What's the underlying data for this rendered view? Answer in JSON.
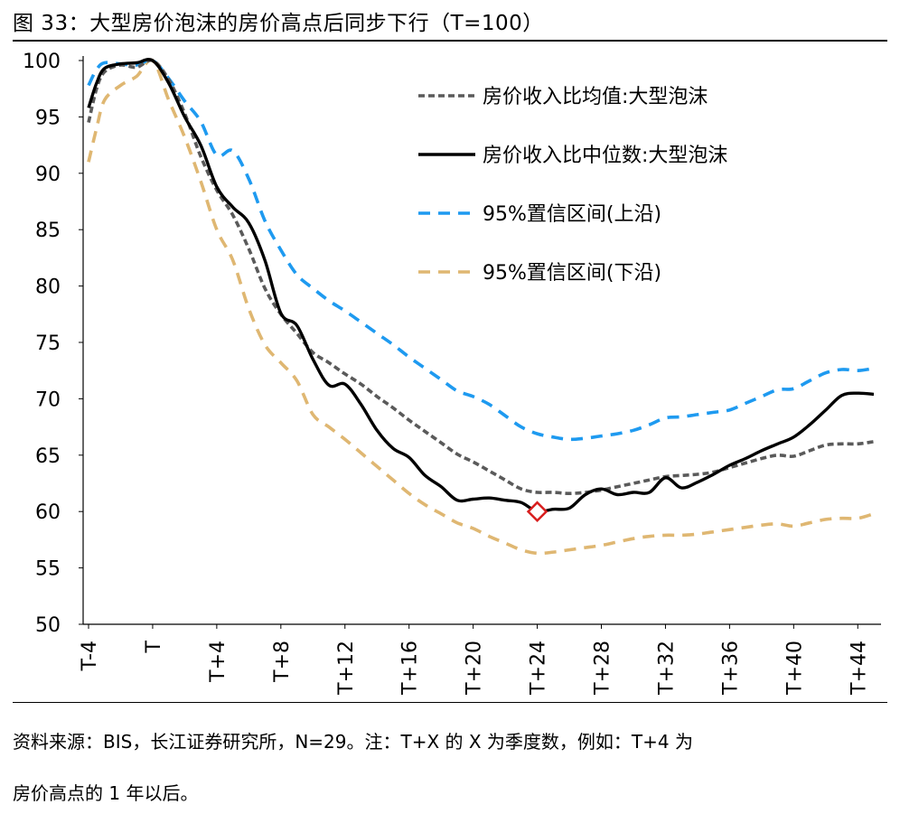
{
  "title": "图 33：大型房价泡沫的房价高点后同步下行（T=100）",
  "source_note": {
    "line1": "资料来源：BIS，长江证券研究所，N=29。注：T+X 的 X 为季度数，例如：T+4 为",
    "line2": "房价高点的 1 年以后。"
  },
  "colors": {
    "mean": "#5a5a5a",
    "median": "#000000",
    "upper": "#1e9af0",
    "lower": "#dfb772",
    "marker": "#d81e1e"
  },
  "chart_data": {
    "type": "line",
    "title": "大型房价泡沫的房价高点后同步下行（T=100）",
    "xlabel": "",
    "ylabel": "",
    "x_range": [
      -4,
      45
    ],
    "ylim": [
      50,
      100
    ],
    "y_ticks": [
      50,
      55,
      60,
      65,
      70,
      75,
      80,
      85,
      90,
      95,
      100
    ],
    "x_ticks": [
      {
        "x": -4,
        "label": "T-4"
      },
      {
        "x": 0,
        "label": "T"
      },
      {
        "x": 4,
        "label": "T+4"
      },
      {
        "x": 8,
        "label": "T+8"
      },
      {
        "x": 12,
        "label": "T+12"
      },
      {
        "x": 16,
        "label": "T+16"
      },
      {
        "x": 20,
        "label": "T+20"
      },
      {
        "x": 24,
        "label": "T+24"
      },
      {
        "x": 28,
        "label": "T+28"
      },
      {
        "x": 32,
        "label": "T+32"
      },
      {
        "x": 36,
        "label": "T+36"
      },
      {
        "x": 40,
        "label": "T+40"
      },
      {
        "x": 44,
        "label": "T+44"
      }
    ],
    "legend_position": "top-right",
    "series": [
      {
        "name": "房价收入比均值:大型泡沫",
        "style": "dotted",
        "color_key": "mean",
        "points": [
          [
            -4,
            94.5
          ],
          [
            -3.5,
            97.5
          ],
          [
            -3,
            99
          ],
          [
            -2,
            99.6
          ],
          [
            -1,
            99.4
          ],
          [
            0,
            100
          ],
          [
            1,
            98.3
          ],
          [
            2,
            95.3
          ],
          [
            3,
            91.5
          ],
          [
            4,
            88.5
          ],
          [
            5,
            86.3
          ],
          [
            6,
            83.3
          ],
          [
            7,
            79.8
          ],
          [
            8,
            77.5
          ],
          [
            9,
            75.8
          ],
          [
            10,
            74.1
          ],
          [
            11,
            73.2
          ],
          [
            12,
            72.2
          ],
          [
            13,
            71.3
          ],
          [
            14,
            70.2
          ],
          [
            15,
            69.2
          ],
          [
            16,
            68.1
          ],
          [
            17,
            67.1
          ],
          [
            18,
            66.1
          ],
          [
            19,
            65.1
          ],
          [
            20,
            64.4
          ],
          [
            21,
            63.6
          ],
          [
            22,
            62.8
          ],
          [
            23,
            62.0
          ],
          [
            24,
            61.7
          ],
          [
            25,
            61.7
          ],
          [
            26,
            61.6
          ],
          [
            27,
            61.7
          ],
          [
            28,
            61.9
          ],
          [
            29,
            62.2
          ],
          [
            30,
            62.5
          ],
          [
            31,
            62.8
          ],
          [
            32,
            63.1
          ],
          [
            33,
            63.2
          ],
          [
            34,
            63.3
          ],
          [
            35,
            63.5
          ],
          [
            36,
            63.9
          ],
          [
            37,
            64.3
          ],
          [
            38,
            64.7
          ],
          [
            39,
            65.0
          ],
          [
            40,
            64.9
          ],
          [
            41,
            65.4
          ],
          [
            42,
            65.9
          ],
          [
            43,
            66.0
          ],
          [
            44,
            66.0
          ],
          [
            45,
            66.2
          ]
        ]
      },
      {
        "name": "房价收入比中位数:大型泡沫",
        "style": "solid",
        "color_key": "median",
        "points": [
          [
            -4,
            95.8
          ],
          [
            -3.5,
            98.0
          ],
          [
            -3,
            99.3
          ],
          [
            -2,
            99.7
          ],
          [
            -1,
            99.8
          ],
          [
            0,
            100
          ],
          [
            1,
            98.0
          ],
          [
            2,
            95.0
          ],
          [
            3,
            92.5
          ],
          [
            4,
            88.8
          ],
          [
            5,
            87.0
          ],
          [
            6,
            85.6
          ],
          [
            7,
            82.3
          ],
          [
            8,
            77.6
          ],
          [
            9,
            76.5
          ],
          [
            10,
            73.5
          ],
          [
            11,
            71.2
          ],
          [
            12,
            71.3
          ],
          [
            13,
            69.5
          ],
          [
            14,
            67.2
          ],
          [
            15,
            65.6
          ],
          [
            16,
            64.8
          ],
          [
            17,
            63.2
          ],
          [
            18,
            62.2
          ],
          [
            19,
            61.0
          ],
          [
            20,
            61.1
          ],
          [
            21,
            61.2
          ],
          [
            22,
            61.0
          ],
          [
            23,
            60.8
          ],
          [
            24,
            60.0
          ],
          [
            25,
            60.2
          ],
          [
            26,
            60.3
          ],
          [
            27,
            61.5
          ],
          [
            28,
            62.0
          ],
          [
            29,
            61.5
          ],
          [
            30,
            61.7
          ],
          [
            31,
            61.7
          ],
          [
            32,
            63.0
          ],
          [
            33,
            62.1
          ],
          [
            34,
            62.6
          ],
          [
            35,
            63.3
          ],
          [
            36,
            64.1
          ],
          [
            37,
            64.7
          ],
          [
            38,
            65.4
          ],
          [
            39,
            66.0
          ],
          [
            40,
            66.6
          ],
          [
            41,
            67.7
          ],
          [
            42,
            69.0
          ],
          [
            43,
            70.3
          ],
          [
            44,
            70.5
          ],
          [
            45,
            70.4
          ]
        ]
      },
      {
        "name": "95%置信区间(上沿)",
        "style": "dashed",
        "color_key": "upper",
        "points": [
          [
            -4,
            97.8
          ],
          [
            -3.5,
            99.2
          ],
          [
            -3,
            99.8
          ],
          [
            -2,
            99.7
          ],
          [
            -1,
            99.6
          ],
          [
            0,
            100
          ],
          [
            1,
            98.4
          ],
          [
            2,
            96.4
          ],
          [
            3,
            94.6
          ],
          [
            4,
            91.6
          ],
          [
            5,
            92.0
          ],
          [
            6,
            89.5
          ],
          [
            7,
            85.8
          ],
          [
            8,
            83.2
          ],
          [
            9,
            81.0
          ],
          [
            10,
            79.8
          ],
          [
            11,
            78.7
          ],
          [
            12,
            77.8
          ],
          [
            13,
            76.8
          ],
          [
            14,
            75.8
          ],
          [
            15,
            74.8
          ],
          [
            16,
            73.7
          ],
          [
            17,
            72.7
          ],
          [
            18,
            71.7
          ],
          [
            19,
            70.7
          ],
          [
            20,
            70.2
          ],
          [
            21,
            69.5
          ],
          [
            22,
            68.5
          ],
          [
            23,
            67.5
          ],
          [
            24,
            66.9
          ],
          [
            25,
            66.6
          ],
          [
            26,
            66.4
          ],
          [
            27,
            66.5
          ],
          [
            28,
            66.7
          ],
          [
            29,
            66.9
          ],
          [
            30,
            67.2
          ],
          [
            31,
            67.7
          ],
          [
            32,
            68.3
          ],
          [
            33,
            68.4
          ],
          [
            34,
            68.6
          ],
          [
            35,
            68.8
          ],
          [
            36,
            69.0
          ],
          [
            37,
            69.6
          ],
          [
            38,
            70.2
          ],
          [
            39,
            70.8
          ],
          [
            40,
            70.9
          ],
          [
            41,
            71.6
          ],
          [
            42,
            72.3
          ],
          [
            43,
            72.6
          ],
          [
            44,
            72.5
          ],
          [
            45,
            72.7
          ]
        ]
      },
      {
        "name": "95%置信区间(下沿)",
        "style": "dashed",
        "color_key": "lower",
        "points": [
          [
            -4,
            91.0
          ],
          [
            -3.5,
            94.0
          ],
          [
            -3,
            96.5
          ],
          [
            -2,
            97.8
          ],
          [
            -1,
            98.6
          ],
          [
            0,
            100
          ],
          [
            1,
            96.5
          ],
          [
            2,
            93.2
          ],
          [
            3,
            89.3
          ],
          [
            4,
            85.0
          ],
          [
            5,
            82.3
          ],
          [
            6,
            78.0
          ],
          [
            7,
            74.8
          ],
          [
            8,
            73.2
          ],
          [
            9,
            71.6
          ],
          [
            10,
            68.6
          ],
          [
            11,
            67.5
          ],
          [
            12,
            66.4
          ],
          [
            13,
            65.2
          ],
          [
            14,
            64.0
          ],
          [
            15,
            62.8
          ],
          [
            16,
            61.6
          ],
          [
            17,
            60.6
          ],
          [
            18,
            59.8
          ],
          [
            19,
            59.0
          ],
          [
            20,
            58.5
          ],
          [
            21,
            57.8
          ],
          [
            22,
            57.2
          ],
          [
            23,
            56.6
          ],
          [
            24,
            56.3
          ],
          [
            25,
            56.4
          ],
          [
            26,
            56.6
          ],
          [
            27,
            56.8
          ],
          [
            28,
            57.0
          ],
          [
            29,
            57.3
          ],
          [
            30,
            57.6
          ],
          [
            31,
            57.8
          ],
          [
            32,
            57.9
          ],
          [
            33,
            57.9
          ],
          [
            34,
            58.0
          ],
          [
            35,
            58.2
          ],
          [
            36,
            58.4
          ],
          [
            37,
            58.6
          ],
          [
            38,
            58.8
          ],
          [
            39,
            58.9
          ],
          [
            40,
            58.7
          ],
          [
            41,
            59.0
          ],
          [
            42,
            59.3
          ],
          [
            43,
            59.4
          ],
          [
            44,
            59.4
          ],
          [
            45,
            59.8
          ]
        ]
      }
    ],
    "annotations": [
      {
        "type": "diamond-marker",
        "x": 24,
        "y": 60.0,
        "color_key": "marker"
      }
    ]
  }
}
